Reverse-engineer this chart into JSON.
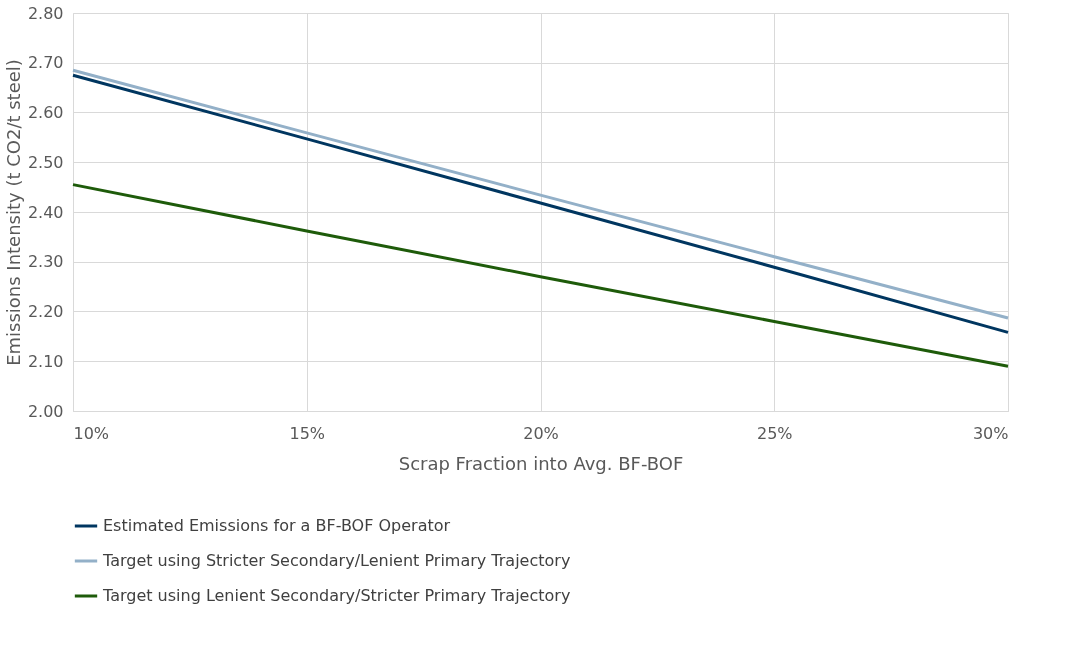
{
  "chart_data": {
    "type": "line",
    "xlabel": "Scrap Fraction into Avg. BF-BOF",
    "ylabel": "Emissions Intensity (t CO2/t steel)",
    "x": [
      10,
      15,
      20,
      25,
      30
    ],
    "series": [
      {
        "name": "Estimated Emissions for a BF-BOF Operator",
        "color": "#003660",
        "values": [
          2.675,
          2.547,
          2.418,
          2.289,
          2.158
        ]
      },
      {
        "name": "Target using Stricter Secondary/Lenient Primary Trajectory",
        "color": "#93b0c8",
        "values": [
          2.685,
          2.559,
          2.434,
          2.31,
          2.187
        ]
      },
      {
        "name": "Target using Lenient Secondary/Stricter Primary Trajectory",
        "color": "#1e5b0a",
        "values": [
          2.455,
          2.362,
          2.27,
          2.18,
          2.09
        ]
      }
    ],
    "xlim": [
      10,
      30
    ],
    "xticks": [
      {
        "value": 10,
        "label": "10%"
      },
      {
        "value": 15,
        "label": "15%"
      },
      {
        "value": 20,
        "label": "20%"
      },
      {
        "value": 25,
        "label": "25%"
      },
      {
        "value": 30,
        "label": "30%"
      }
    ],
    "ylim": [
      2.0,
      2.8
    ],
    "yticks": [
      {
        "value": 2.0,
        "label": "2.00"
      },
      {
        "value": 2.1,
        "label": "2.10"
      },
      {
        "value": 2.2,
        "label": "2.20"
      },
      {
        "value": 2.3,
        "label": "2.30"
      },
      {
        "value": 2.4,
        "label": "2.40"
      },
      {
        "value": 2.5,
        "label": "2.50"
      },
      {
        "value": 2.6,
        "label": "2.60"
      },
      {
        "value": 2.7,
        "label": "2.70"
      },
      {
        "value": 2.8,
        "label": "2.80"
      }
    ],
    "grid": true,
    "legend": "bottom",
    "marker": "none",
    "line_style": "solid"
  }
}
